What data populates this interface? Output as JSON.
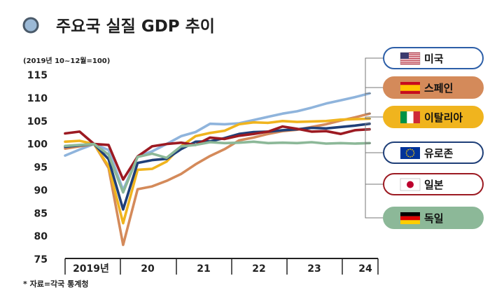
{
  "chart_data": {
    "type": "line",
    "title": "주요국 실질 GDP 추이",
    "unit_note": "(2019년 10~12월=100)",
    "source": "* 자료=각국 통계청",
    "ylim": [
      75,
      115
    ],
    "yticks": [
      75,
      80,
      85,
      90,
      95,
      100,
      105,
      110,
      115
    ],
    "x": [
      "2019-Q2",
      "2019-Q3",
      "2019-Q4",
      "2020-Q1",
      "2020-Q2",
      "2020-Q3",
      "2020-Q4",
      "2021-Q1",
      "2021-Q2",
      "2021-Q3",
      "2021-Q4",
      "2022-Q1",
      "2022-Q2",
      "2022-Q3",
      "2022-Q4",
      "2023-Q1",
      "2023-Q2",
      "2023-Q3",
      "2023-Q4",
      "2024-Q1",
      "2024-Q2",
      "2024-Q3"
    ],
    "x_labels": [
      "2019년",
      "20",
      "21",
      "22",
      "23",
      "24"
    ],
    "grid": false,
    "legend_position": "right",
    "series": [
      {
        "name": "미국",
        "flag": "us-flag-icon",
        "color": "#8fb4dc",
        "values": [
          97.5,
          98.8,
          100,
          98.7,
          90.0,
          97.3,
          98.4,
          100.0,
          101.7,
          102.6,
          104.4,
          104.3,
          104.5,
          105.2,
          105.9,
          106.6,
          107.1,
          107.9,
          108.8,
          109.5,
          110.2,
          111.0
        ]
      },
      {
        "name": "스페인",
        "flag": "spain-flag-icon",
        "color": "#d48a5a",
        "values": [
          99.0,
          99.5,
          100,
          94.8,
          78.1,
          90.2,
          90.8,
          92.0,
          93.5,
          95.6,
          97.4,
          98.9,
          100.8,
          101.4,
          102.2,
          102.8,
          103.1,
          103.7,
          104.3,
          105.1,
          105.8,
          106.6
        ]
      },
      {
        "name": "이탈리아",
        "flag": "italy-flag-icon",
        "color": "#f0b41e",
        "values": [
          100.5,
          100.7,
          100,
          95.2,
          82.8,
          94.4,
          94.6,
          96.2,
          99.5,
          101.7,
          102.4,
          102.9,
          104.3,
          104.7,
          104.6,
          105.0,
          104.8,
          104.9,
          105.0,
          105.3,
          105.4,
          105.5
        ]
      },
      {
        "name": "유로존",
        "flag": "eu-flag-icon",
        "color": "#1f3f78",
        "values": [
          99.4,
          99.7,
          100,
          96.7,
          85.8,
          95.9,
          96.5,
          96.8,
          98.9,
          100.5,
          100.6,
          101.3,
          102.2,
          102.6,
          102.7,
          103.0,
          103.2,
          103.5,
          103.4,
          103.7,
          104.0,
          104.4
        ]
      },
      {
        "name": "일본",
        "flag": "japan-flag-icon",
        "color": "#9c1a22",
        "values": [
          102.3,
          102.7,
          100,
          99.8,
          92.3,
          97.3,
          99.5,
          100.0,
          100.3,
          99.8,
          101.4,
          101.1,
          101.8,
          102.2,
          102.7,
          103.8,
          103.3,
          102.7,
          102.8,
          102.2,
          103.0,
          103.2
        ]
      },
      {
        "name": "독일",
        "flag": "germany-flag-icon",
        "color": "#8cb898",
        "values": [
          99.6,
          99.8,
          100,
          97.7,
          89.5,
          97.2,
          97.9,
          97.0,
          99.5,
          99.8,
          100.4,
          100.2,
          100.3,
          100.5,
          100.2,
          100.3,
          100.2,
          100.4,
          100.1,
          100.2,
          100.1,
          100.2
        ]
      }
    ]
  }
}
